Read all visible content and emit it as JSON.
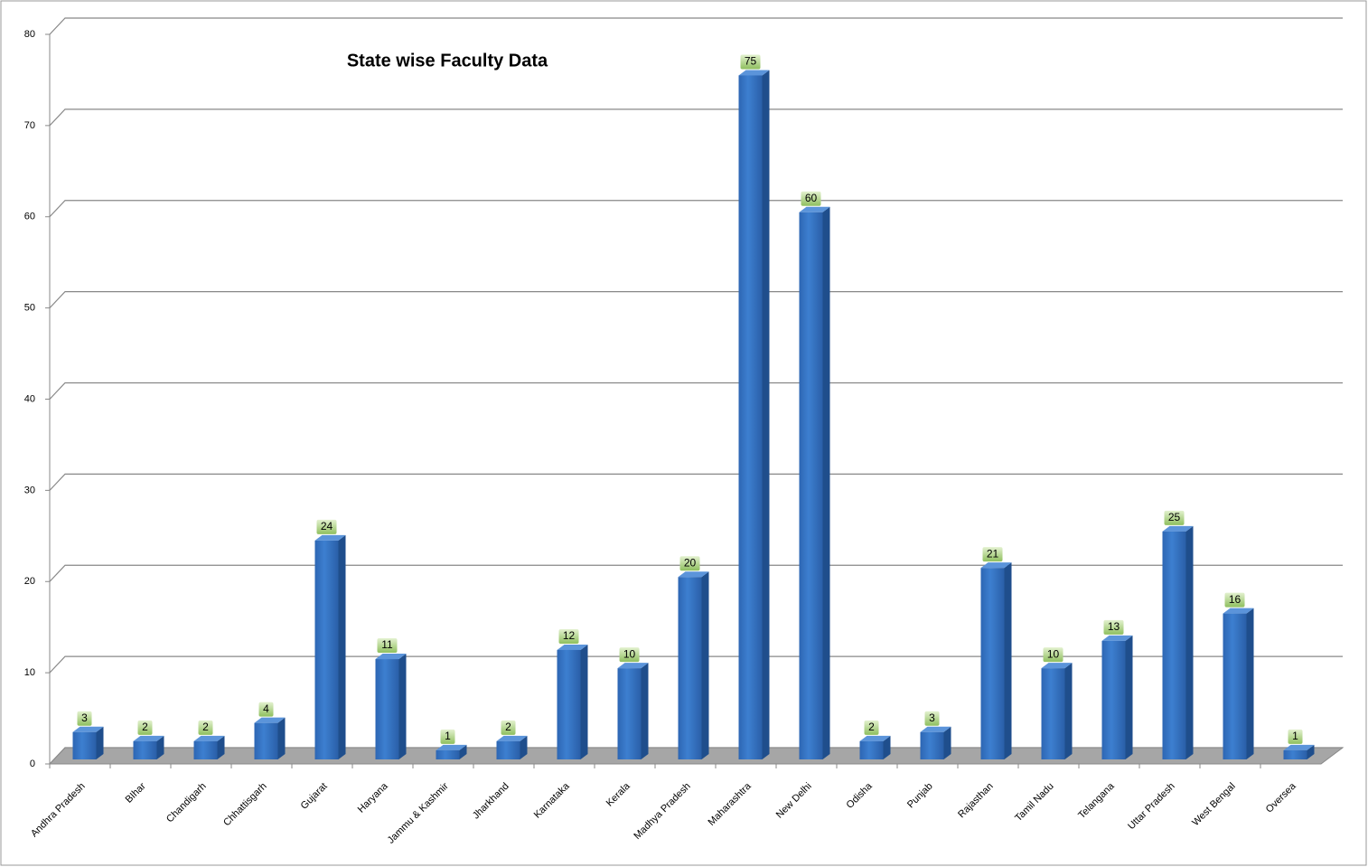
{
  "chart_data": {
    "type": "bar",
    "title": "State wise Faculty Data",
    "categories": [
      "Andhra Pradesh",
      "BIhar",
      "Chandigarh",
      "Chhattisgarh",
      "Gujarat",
      "Haryana",
      "Jammu & Kashmir",
      "Jharkhand",
      "Karnataka",
      "Kerala",
      "Madhya Pradesh",
      "Maharashtra",
      "New Delhi",
      "Odisha",
      "Punjab",
      "Rajasthan",
      "Tamil Nadu",
      "Telangana",
      "Uttar Pradesh",
      "West Bengal",
      "Oversea"
    ],
    "values": [
      3,
      2,
      2,
      4,
      24,
      11,
      1,
      2,
      12,
      10,
      20,
      75,
      60,
      2,
      3,
      21,
      10,
      13,
      25,
      16,
      1
    ],
    "color": "#3a78c9",
    "ylim": [
      0,
      80
    ],
    "yticks": [
      0,
      10,
      20,
      30,
      40,
      50,
      60,
      70,
      80
    ],
    "grid": true
  }
}
